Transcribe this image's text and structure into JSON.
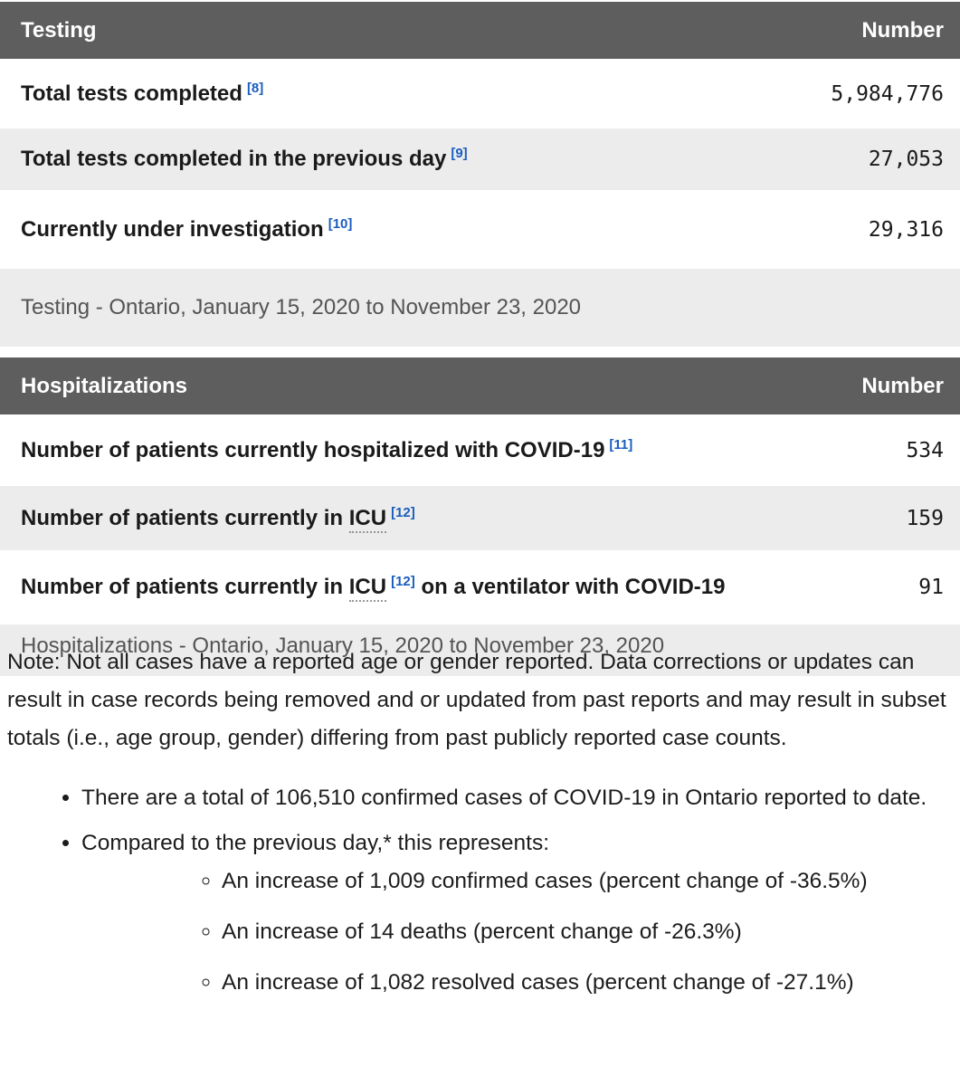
{
  "colors": {
    "table_header_bg": "#5e5e5e",
    "alt_row_bg": "#ececec",
    "footnote_link": "#1a5dbe",
    "caption_text": "#545454"
  },
  "testing_table": {
    "header": {
      "title": "Testing",
      "number_label": "Number"
    },
    "rows": [
      {
        "label": "Total tests completed",
        "footnote": "[8]",
        "value": "5,984,776"
      },
      {
        "label": "Total tests completed in the previous day",
        "footnote": "[9]",
        "value": "27,053"
      },
      {
        "label": "Currently under investigation",
        "footnote": "[10]",
        "value": "29,316"
      }
    ],
    "caption": "Testing - Ontario, January 15, 2020 to November 23, 2020"
  },
  "hospitalizations_table": {
    "header": {
      "title": "Hospitalizations",
      "number_label": "Number"
    },
    "rows": [
      {
        "label": "Number of patients currently hospitalized with COVID-19",
        "footnote": "[11]",
        "value": "534"
      },
      {
        "label_prefix": "Number of patients currently in",
        "abbr": "ICU",
        "footnote": "[12]",
        "value": "159"
      },
      {
        "label_prefix": "Number of patients currently in",
        "abbr": "ICU",
        "footnote": "[12]",
        "label_suffix": "on a ventilator with COVID-19",
        "value": "91"
      }
    ],
    "caption": "Hospitalizations - Ontario, January 15, 2020 to November 23, 2020"
  },
  "note": {
    "text": "Note: Not all cases have a reported age or gender reported. Data corrections or updates can result in case records being removed and or updated from past reports and may result in subset totals (i.e., age group, gender) differing from past publicly reported case counts."
  },
  "bullets": {
    "total_cases": "There are a total of 106,510 confirmed cases of COVID-19 in Ontario reported to date.",
    "compared_intro": "Compared to the previous day,* this represents:",
    "sub_items": [
      "An increase of 1,009 confirmed cases (percent change of -36.5%)",
      "An increase of 14 deaths (percent change of -26.3%)",
      "An increase of 1,082 resolved cases (percent change of -27.1%)"
    ]
  }
}
